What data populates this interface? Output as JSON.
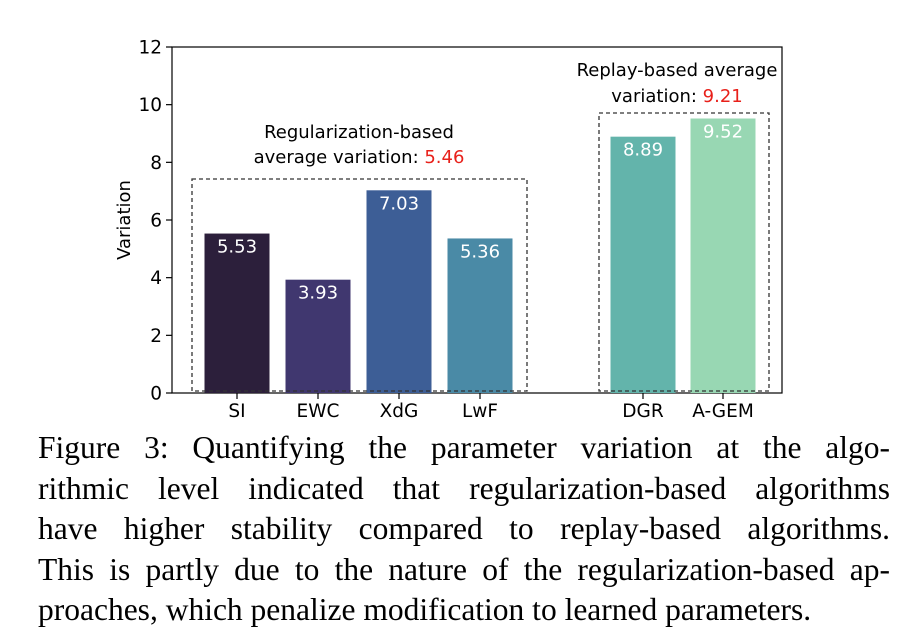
{
  "chart_data": {
    "type": "bar",
    "categories": [
      "SI",
      "EWC",
      "XdG",
      "LwF",
      "DGR",
      "A-GEM"
    ],
    "values": [
      5.53,
      3.93,
      7.03,
      5.36,
      8.89,
      9.52
    ],
    "value_labels": [
      "5.53",
      "3.93",
      "7.03",
      "5.36",
      "8.89",
      "9.52"
    ],
    "colors": [
      "#2c1f3b",
      "#40376f",
      "#3d5e96",
      "#4a8aa6",
      "#63b4ab",
      "#98d7b3"
    ],
    "ylabel": "Variation",
    "ylim": [
      0,
      12
    ],
    "yticks": [
      "0",
      "2",
      "4",
      "6",
      "8",
      "10",
      "12"
    ],
    "grid": false,
    "groups": [
      {
        "members": [
          "SI",
          "EWC",
          "XdG",
          "LwF"
        ],
        "label_line1": "Regularization-based",
        "label_line2_prefix": "average variation: ",
        "label_value": "5.46",
        "value_color": "#e8201a"
      },
      {
        "members": [
          "DGR",
          "A-GEM"
        ],
        "label_line1": "Replay-based average",
        "label_line2_prefix": "variation: ",
        "label_value": "9.21",
        "value_color": "#e8201a"
      }
    ]
  },
  "caption": {
    "lines": [
      "Figure 3: Quantifying the parameter variation at the algo-",
      "rithmic level indicated that regularization-based algorithms",
      "have higher stability compared to replay-based algorithms.",
      "This is partly due to the nature of the regularization-based ap-",
      "proaches, which penalize modification to learned parameters."
    ]
  }
}
